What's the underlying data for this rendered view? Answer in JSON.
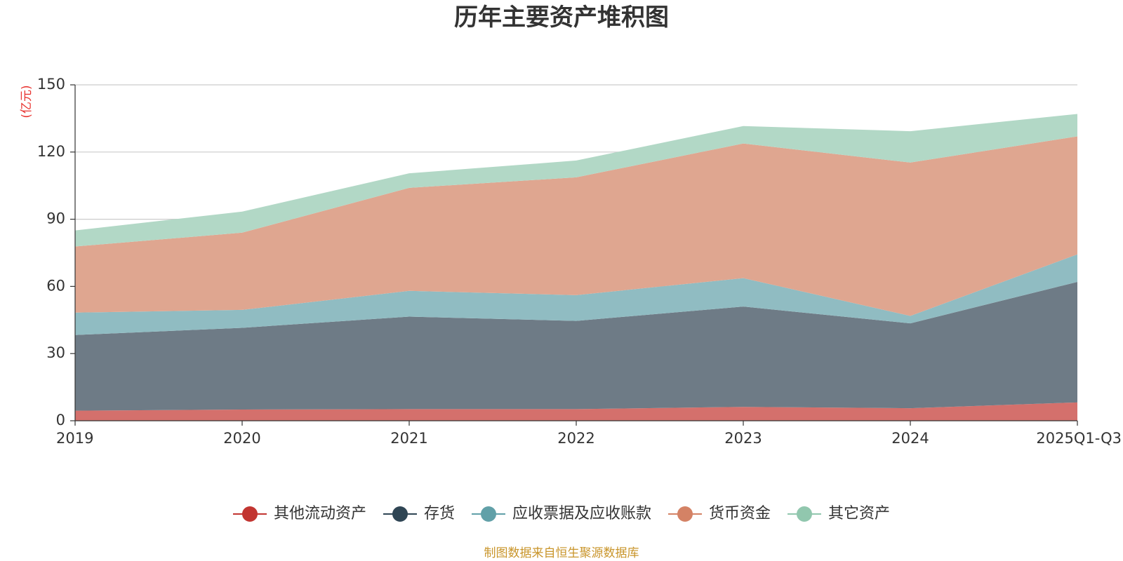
{
  "chart_data": {
    "type": "area",
    "stacked": true,
    "title": "历年主要资产堆积图",
    "unit_label": "(亿元)",
    "xlabel": "",
    "ylabel": "(亿元)",
    "ylim": [
      0,
      150
    ],
    "y_ticks": [
      0,
      30,
      60,
      90,
      120,
      150
    ],
    "grid": true,
    "legend_position": "bottom",
    "categories": [
      "2019",
      "2020",
      "2021",
      "2022",
      "2023",
      "2024",
      "2025Q1-Q3"
    ],
    "series": [
      {
        "name": "其他流动资产",
        "color": "#c23531",
        "fill": "#d4706c",
        "values": [
          4.5,
          5.0,
          5.2,
          5.2,
          6.2,
          5.6,
          8.2
        ]
      },
      {
        "name": "存货",
        "color": "#2f4554",
        "fill": "#6e7b86",
        "values": [
          33.8,
          36.5,
          41.3,
          39.4,
          44.8,
          37.9,
          53.8
        ]
      },
      {
        "name": "应收票据及应收账款",
        "color": "#61a0a8",
        "fill": "#90bcc2",
        "values": [
          10.0,
          8.0,
          11.5,
          11.5,
          12.7,
          3.3,
          12.3
        ]
      },
      {
        "name": "货币资金",
        "color": "#d48265",
        "fill": "#dfa690",
        "values": [
          29.5,
          34.5,
          46.0,
          52.6,
          60.1,
          68.5,
          52.7
        ]
      },
      {
        "name": "其它资产",
        "color": "#91c7ae",
        "fill": "#b2d8c6",
        "values": [
          7.2,
          9.4,
          6.5,
          7.5,
          7.8,
          14.0,
          10.0
        ]
      }
    ],
    "source_note": "制图数据来自恒生聚源数据库"
  }
}
